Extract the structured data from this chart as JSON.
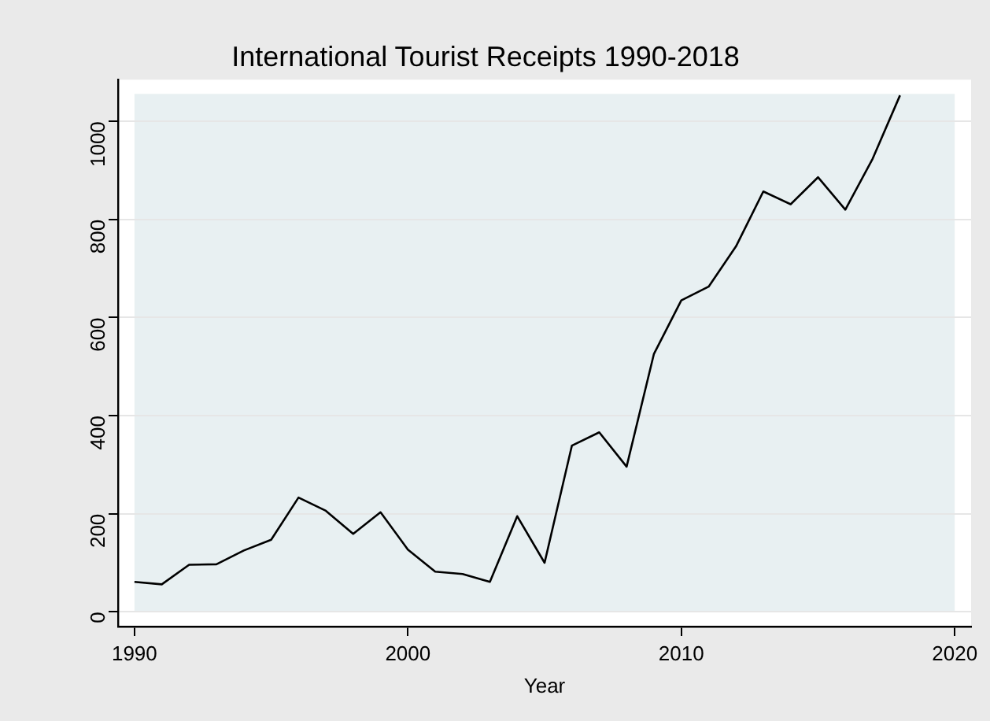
{
  "chart_data": {
    "type": "line",
    "title": "International Tourist Receipts 1990-2018",
    "xlabel": "Year",
    "x": [
      1990,
      1991,
      1992,
      1993,
      1994,
      1995,
      1996,
      1997,
      1998,
      1999,
      2000,
      2001,
      2002,
      2003,
      2004,
      2005,
      2006,
      2007,
      2008,
      2009,
      2010,
      2011,
      2012,
      2013,
      2014,
      2015,
      2016,
      2017,
      2018
    ],
    "series": [
      {
        "color": "#000000",
        "values": [
          61,
          56,
          96,
          97,
          125,
          147,
          233,
          206,
          159,
          203,
          127,
          82,
          77,
          61,
          195,
          100,
          339,
          366,
          296,
          526,
          635,
          663,
          745,
          857,
          831,
          886,
          820,
          924,
          1053
        ]
      }
    ],
    "xlim": [
      1989.4,
      2020.6
    ],
    "xticks": [
      1990,
      2000,
      2010,
      2020
    ],
    "ylim": [
      -30,
      1085
    ],
    "yticks": [
      0,
      200,
      400,
      600,
      800,
      1000
    ],
    "grid": "y",
    "legend": false,
    "marker": "none",
    "line_style": "solid"
  }
}
